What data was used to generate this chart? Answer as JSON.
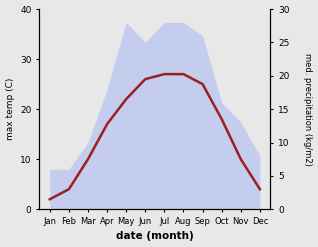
{
  "months": [
    "Jan",
    "Feb",
    "Mar",
    "Apr",
    "May",
    "Jun",
    "Jul",
    "Aug",
    "Sep",
    "Oct",
    "Nov",
    "Dec"
  ],
  "temperature": [
    2,
    4,
    10,
    17,
    22,
    26,
    27,
    27,
    25,
    18,
    10,
    4
  ],
  "precipitation": [
    6,
    6,
    10,
    18,
    28,
    25,
    28,
    28,
    26,
    16,
    13,
    8
  ],
  "temp_color": "#9B2020",
  "precip_fill_color": "#b8c4f0",
  "precip_alpha": 0.75,
  "temp_ylim": [
    0,
    40
  ],
  "precip_ylim": [
    0,
    30
  ],
  "xlabel": "date (month)",
  "ylabel_left": "max temp (C)",
  "ylabel_right": "med. precipitation (kg/m2)",
  "bg_color": "#e8e8e8",
  "plot_bg_color": "#e8e8e8"
}
